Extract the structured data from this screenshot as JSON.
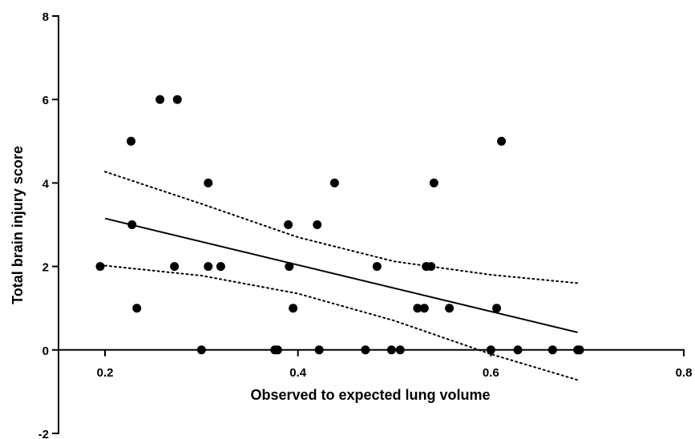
{
  "chart_data": {
    "type": "scatter",
    "title": "",
    "xlabel": "Observed to expected lung volume",
    "ylabel": "Total brain injury score",
    "xlim": [
      0.2,
      0.8
    ],
    "ylim": [
      -2,
      8
    ],
    "x_ticks": [
      "0.2",
      "0.4",
      "0.6",
      "0.8"
    ],
    "y_ticks": [
      "-2",
      "0",
      "2",
      "4",
      "6",
      "8"
    ],
    "grid": false,
    "legend": "none",
    "colors": {
      "points": "#000000",
      "lines": "#000000"
    },
    "points": [
      {
        "x": 0.195,
        "y": 2
      },
      {
        "x": 0.227,
        "y": 5
      },
      {
        "x": 0.228,
        "y": 3
      },
      {
        "x": 0.233,
        "y": 1
      },
      {
        "x": 0.257,
        "y": 6
      },
      {
        "x": 0.272,
        "y": 2
      },
      {
        "x": 0.275,
        "y": 6
      },
      {
        "x": 0.3,
        "y": 0
      },
      {
        "x": 0.307,
        "y": 4
      },
      {
        "x": 0.307,
        "y": 2
      },
      {
        "x": 0.32,
        "y": 2
      },
      {
        "x": 0.376,
        "y": 0
      },
      {
        "x": 0.379,
        "y": 0
      },
      {
        "x": 0.39,
        "y": 3
      },
      {
        "x": 0.391,
        "y": 2
      },
      {
        "x": 0.395,
        "y": 1
      },
      {
        "x": 0.42,
        "y": 3
      },
      {
        "x": 0.422,
        "y": 0
      },
      {
        "x": 0.438,
        "y": 4
      },
      {
        "x": 0.47,
        "y": 0
      },
      {
        "x": 0.482,
        "y": 2
      },
      {
        "x": 0.497,
        "y": 0
      },
      {
        "x": 0.506,
        "y": 0
      },
      {
        "x": 0.524,
        "y": 1
      },
      {
        "x": 0.531,
        "y": 1
      },
      {
        "x": 0.533,
        "y": 2
      },
      {
        "x": 0.538,
        "y": 2
      },
      {
        "x": 0.541,
        "y": 4
      },
      {
        "x": 0.557,
        "y": 1
      },
      {
        "x": 0.6,
        "y": 0
      },
      {
        "x": 0.606,
        "y": 1
      },
      {
        "x": 0.611,
        "y": 5
      },
      {
        "x": 0.628,
        "y": 0
      },
      {
        "x": 0.664,
        "y": 0
      },
      {
        "x": 0.69,
        "y": 0
      },
      {
        "x": 0.692,
        "y": 0
      }
    ],
    "regression_line": {
      "x": [
        0.2,
        0.69
      ],
      "y": [
        3.15,
        0.42
      ]
    },
    "confidence_band": {
      "style": "dotted",
      "upper": {
        "x": [
          0.2,
          0.3,
          0.4,
          0.5,
          0.6,
          0.69
        ],
        "y": [
          4.27,
          3.5,
          2.7,
          2.12,
          1.8,
          1.6
        ]
      },
      "lower": {
        "x": [
          0.2,
          0.3,
          0.4,
          0.5,
          0.6,
          0.69
        ],
        "y": [
          2.02,
          1.78,
          1.35,
          0.7,
          -0.1,
          -0.72
        ]
      }
    }
  }
}
